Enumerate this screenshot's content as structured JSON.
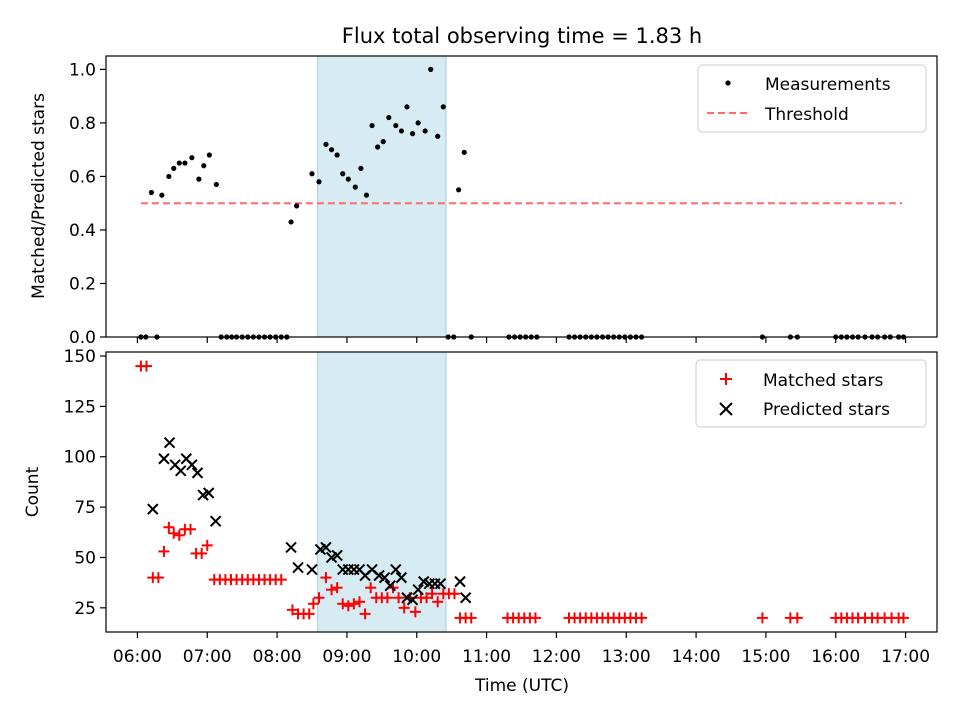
{
  "chart_data": [
    {
      "type": "scatter",
      "title": "Flux total observing time = 1.83 h",
      "xlabel": "",
      "ylabel": "Matched/Predicted stars",
      "xlim": [
        5.55,
        17.45
      ],
      "ylim": [
        0,
        1.05
      ],
      "yticks": [
        0,
        0.2,
        0.4,
        0.6,
        0.8,
        1.0
      ],
      "ytick_labels": [
        "0.0",
        "0.2",
        "0.4",
        "0.6",
        "0.8",
        "1.0"
      ],
      "legend": {
        "location": "upper right",
        "entries": [
          "Measurements",
          "Threshold"
        ]
      },
      "highlight_span": {
        "x": [
          8.58,
          10.42
        ],
        "color": "#add8e6"
      },
      "threshold": {
        "name": "Threshold",
        "value": 0.5,
        "x": [
          6.05,
          16.95
        ],
        "color": "#ff6b6b",
        "style": "dashed"
      },
      "series": [
        {
          "name": "Measurements",
          "color": "#000000",
          "points": [
            [
              6.05,
              0
            ],
            [
              6.12,
              0
            ],
            [
              6.28,
              0
            ],
            [
              6.2,
              0.54
            ],
            [
              6.35,
              0.53
            ],
            [
              6.45,
              0.6
            ],
            [
              6.52,
              0.63
            ],
            [
              6.6,
              0.65
            ],
            [
              6.68,
              0.65
            ],
            [
              6.78,
              0.67
            ],
            [
              6.88,
              0.59
            ],
            [
              6.95,
              0.64
            ],
            [
              7.03,
              0.68
            ],
            [
              7.13,
              0.57
            ],
            [
              7.2,
              0
            ],
            [
              7.28,
              0
            ],
            [
              7.35,
              0
            ],
            [
              7.42,
              0
            ],
            [
              7.5,
              0
            ],
            [
              7.58,
              0
            ],
            [
              7.66,
              0
            ],
            [
              7.74,
              0
            ],
            [
              7.82,
              0
            ],
            [
              7.9,
              0
            ],
            [
              7.98,
              0
            ],
            [
              8.06,
              0
            ],
            [
              8.14,
              0
            ],
            [
              8.2,
              0.43
            ],
            [
              8.28,
              0.49
            ],
            [
              8.5,
              0.61
            ],
            [
              8.6,
              0.58
            ],
            [
              8.7,
              0.72
            ],
            [
              8.78,
              0.7
            ],
            [
              8.86,
              0.68
            ],
            [
              8.94,
              0.61
            ],
            [
              9.02,
              0.59
            ],
            [
              9.12,
              0.56
            ],
            [
              9.2,
              0.63
            ],
            [
              9.28,
              0.53
            ],
            [
              9.36,
              0.79
            ],
            [
              9.44,
              0.71
            ],
            [
              9.52,
              0.73
            ],
            [
              9.6,
              0.82
            ],
            [
              9.7,
              0.79
            ],
            [
              9.78,
              0.77
            ],
            [
              9.86,
              0.86
            ],
            [
              9.94,
              0.76
            ],
            [
              10.02,
              0.8
            ],
            [
              10.12,
              0.77
            ],
            [
              10.2,
              1.0
            ],
            [
              10.3,
              0.75
            ],
            [
              10.38,
              0.86
            ],
            [
              10.45,
              0
            ],
            [
              10.53,
              0
            ],
            [
              10.6,
              0.55
            ],
            [
              10.68,
              0.69
            ],
            [
              10.78,
              0
            ],
            [
              11.32,
              0
            ],
            [
              11.4,
              0
            ],
            [
              11.48,
              0
            ],
            [
              11.56,
              0
            ],
            [
              11.64,
              0
            ],
            [
              11.72,
              0
            ],
            [
              12.18,
              0
            ],
            [
              12.26,
              0
            ],
            [
              12.34,
              0
            ],
            [
              12.42,
              0
            ],
            [
              12.5,
              0
            ],
            [
              12.58,
              0
            ],
            [
              12.66,
              0
            ],
            [
              12.74,
              0
            ],
            [
              12.82,
              0
            ],
            [
              12.9,
              0
            ],
            [
              12.98,
              0
            ],
            [
              13.06,
              0
            ],
            [
              13.14,
              0
            ],
            [
              13.22,
              0
            ],
            [
              14.95,
              0
            ],
            [
              15.35,
              0
            ],
            [
              15.45,
              0
            ],
            [
              16.0,
              0
            ],
            [
              16.08,
              0
            ],
            [
              16.16,
              0
            ],
            [
              16.24,
              0
            ],
            [
              16.32,
              0
            ],
            [
              16.42,
              0
            ],
            [
              16.52,
              0
            ],
            [
              16.6,
              0
            ],
            [
              16.7,
              0
            ],
            [
              16.78,
              0
            ],
            [
              16.9,
              0
            ],
            [
              16.97,
              0
            ]
          ]
        }
      ]
    },
    {
      "type": "scatter",
      "title": "",
      "xlabel": "Time (UTC)",
      "ylabel": "Count",
      "xlim": [
        5.55,
        17.45
      ],
      "ylim": [
        13,
        152
      ],
      "yticks": [
        25,
        50,
        75,
        100,
        125,
        150
      ],
      "ytick_labels": [
        "25",
        "50",
        "75",
        "100",
        "125",
        "150"
      ],
      "xticks": [
        6,
        7,
        8,
        9,
        10,
        11,
        12,
        13,
        14,
        15,
        16,
        17
      ],
      "xtick_labels": [
        "06:00",
        "07:00",
        "08:00",
        "09:00",
        "10:00",
        "11:00",
        "12:00",
        "13:00",
        "14:00",
        "15:00",
        "16:00",
        "17:00"
      ],
      "legend": {
        "location": "upper right",
        "entries": [
          "Matched stars",
          "Predicted stars"
        ]
      },
      "highlight_span": {
        "x": [
          8.58,
          10.42
        ],
        "color": "#add8e6"
      },
      "series": [
        {
          "name": "Matched stars",
          "marker": "plus",
          "color": "#ff0000",
          "points": [
            [
              6.05,
              145
            ],
            [
              6.13,
              145
            ],
            [
              6.22,
              40
            ],
            [
              6.3,
              40
            ],
            [
              6.38,
              53
            ],
            [
              6.45,
              65
            ],
            [
              6.52,
              62
            ],
            [
              6.6,
              61
            ],
            [
              6.68,
              64
            ],
            [
              6.76,
              64
            ],
            [
              6.84,
              52
            ],
            [
              6.92,
              52
            ],
            [
              7.0,
              56
            ],
            [
              7.1,
              39
            ],
            [
              7.18,
              39
            ],
            [
              7.26,
              39
            ],
            [
              7.34,
              39
            ],
            [
              7.42,
              39
            ],
            [
              7.5,
              39
            ],
            [
              7.58,
              39
            ],
            [
              7.66,
              39
            ],
            [
              7.74,
              39
            ],
            [
              7.82,
              39
            ],
            [
              7.9,
              39
            ],
            [
              7.98,
              39
            ],
            [
              8.06,
              39
            ],
            [
              8.22,
              24
            ],
            [
              8.3,
              22
            ],
            [
              8.38,
              22
            ],
            [
              8.46,
              22
            ],
            [
              8.52,
              27
            ],
            [
              8.6,
              30
            ],
            [
              8.7,
              40
            ],
            [
              8.78,
              34
            ],
            [
              8.86,
              35
            ],
            [
              8.94,
              27
            ],
            [
              9.02,
              26
            ],
            [
              9.1,
              27
            ],
            [
              9.18,
              28
            ],
            [
              9.26,
              22
            ],
            [
              9.34,
              35
            ],
            [
              9.42,
              30
            ],
            [
              9.5,
              30
            ],
            [
              9.58,
              30
            ],
            [
              9.66,
              35
            ],
            [
              9.74,
              30
            ],
            [
              9.82,
              25
            ],
            [
              9.9,
              30
            ],
            [
              9.98,
              23
            ],
            [
              10.06,
              30
            ],
            [
              10.14,
              30
            ],
            [
              10.22,
              32
            ],
            [
              10.3,
              28
            ],
            [
              10.38,
              32
            ],
            [
              10.46,
              32
            ],
            [
              10.54,
              32
            ],
            [
              10.62,
              20
            ],
            [
              10.7,
              20
            ],
            [
              10.78,
              20
            ],
            [
              11.3,
              20
            ],
            [
              11.38,
              20
            ],
            [
              11.46,
              20
            ],
            [
              11.54,
              20
            ],
            [
              11.62,
              20
            ],
            [
              11.7,
              20
            ],
            [
              12.18,
              20
            ],
            [
              12.26,
              20
            ],
            [
              12.34,
              20
            ],
            [
              12.42,
              20
            ],
            [
              12.5,
              20
            ],
            [
              12.58,
              20
            ],
            [
              12.66,
              20
            ],
            [
              12.74,
              20
            ],
            [
              12.82,
              20
            ],
            [
              12.9,
              20
            ],
            [
              12.98,
              20
            ],
            [
              13.06,
              20
            ],
            [
              13.14,
              20
            ],
            [
              13.22,
              20
            ],
            [
              14.95,
              20
            ],
            [
              15.35,
              20
            ],
            [
              15.45,
              20
            ],
            [
              16.0,
              20
            ],
            [
              16.08,
              20
            ],
            [
              16.16,
              20
            ],
            [
              16.24,
              20
            ],
            [
              16.32,
              20
            ],
            [
              16.42,
              20
            ],
            [
              16.52,
              20
            ],
            [
              16.6,
              20
            ],
            [
              16.7,
              20
            ],
            [
              16.8,
              20
            ],
            [
              16.9,
              20
            ],
            [
              16.97,
              20
            ]
          ]
        },
        {
          "name": "Predicted stars",
          "marker": "x",
          "color": "#000000",
          "points": [
            [
              6.22,
              74
            ],
            [
              6.38,
              99
            ],
            [
              6.46,
              107
            ],
            [
              6.54,
              96
            ],
            [
              6.62,
              93
            ],
            [
              6.7,
              99
            ],
            [
              6.78,
              96
            ],
            [
              6.86,
              92
            ],
            [
              6.94,
              81
            ],
            [
              7.02,
              82
            ],
            [
              7.12,
              68
            ],
            [
              8.2,
              55
            ],
            [
              8.3,
              45
            ],
            [
              8.5,
              44
            ],
            [
              8.62,
              54
            ],
            [
              8.7,
              55
            ],
            [
              8.78,
              50
            ],
            [
              8.86,
              51
            ],
            [
              8.94,
              44
            ],
            [
              9.02,
              44
            ],
            [
              9.1,
              44
            ],
            [
              9.18,
              44
            ],
            [
              9.26,
              41
            ],
            [
              9.36,
              44
            ],
            [
              9.46,
              41
            ],
            [
              9.54,
              40
            ],
            [
              9.62,
              36
            ],
            [
              9.7,
              44
            ],
            [
              9.78,
              40
            ],
            [
              9.86,
              30
            ],
            [
              9.94,
              29
            ],
            [
              10.02,
              34
            ],
            [
              10.1,
              38
            ],
            [
              10.18,
              37
            ],
            [
              10.26,
              37
            ],
            [
              10.34,
              37
            ],
            [
              10.62,
              38
            ],
            [
              10.7,
              30
            ]
          ]
        }
      ]
    }
  ]
}
